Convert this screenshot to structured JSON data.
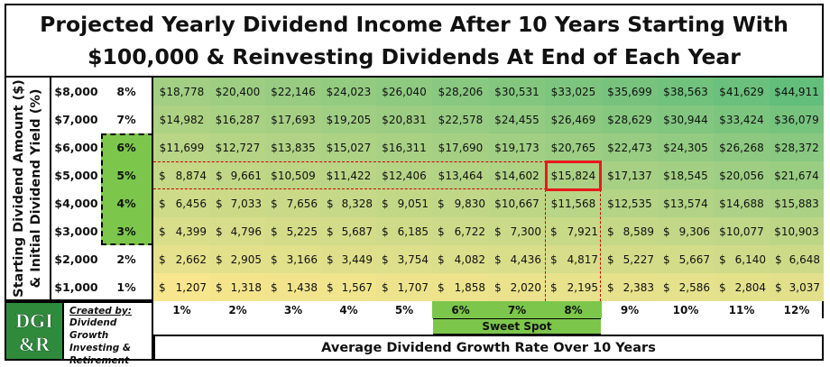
{
  "title": {
    "line1": "Projected Yearly Dividend Income After 10 Years Starting With",
    "line2": "$100,000 & Reinvesting Dividends At End of Each Year"
  },
  "axis": {
    "ylabel_line1": "Starting Dividend Amount ($)",
    "ylabel_line2": "& Initial Dividend Yield (%)",
    "xlabel": "Average Dividend Growth Rate Over 10 Years"
  },
  "sweet_spot_label": "Sweet Spot",
  "credit": {
    "heading": "Created by:",
    "line1": "Dividend Growth",
    "line2": "Investing &",
    "line3": "Retirement"
  },
  "logo": {
    "top": "DGI",
    "bottom": "&R"
  },
  "chart_data": {
    "type": "heatmap",
    "title": "Projected Yearly Dividend Income After 10 Years Starting With $100,000 & Reinvesting Dividends At End of Each Year",
    "xlabel": "Average Dividend Growth Rate Over 10 Years",
    "ylabel": "Starting Dividend Amount ($) & Initial Dividend Yield (%)",
    "x": [
      "1%",
      "2%",
      "3%",
      "4%",
      "5%",
      "6%",
      "7%",
      "8%",
      "9%",
      "10%",
      "11%",
      "12%"
    ],
    "y_amounts": [
      "$8,000",
      "$7,000",
      "$6,000",
      "$5,000",
      "$4,000",
      "$3,000",
      "$2,000",
      "$1,000"
    ],
    "y_yields": [
      "8%",
      "7%",
      "6%",
      "5%",
      "4%",
      "3%",
      "2%",
      "1%"
    ],
    "highlighted_yields": [
      "6%",
      "5%",
      "4%",
      "3%"
    ],
    "highlighted_rates": [
      "6%",
      "7%",
      "8%"
    ],
    "highlighted_cell": {
      "yield": "5%",
      "rate": "8%"
    },
    "colors": {
      "low": "#f8e68e",
      "high": "#63be7b",
      "highlight": "#7cc64c",
      "marker": "#e8191e"
    },
    "values": [
      [
        "18,778",
        "20,400",
        "22,146",
        "24,023",
        "26,040",
        "28,206",
        "30,531",
        "33,025",
        "35,699",
        "38,563",
        "41,629",
        "44,911"
      ],
      [
        "14,982",
        "16,287",
        "17,693",
        "19,205",
        "20,831",
        "22,578",
        "24,455",
        "26,469",
        "28,629",
        "30,944",
        "33,424",
        "36,079"
      ],
      [
        "11,699",
        "12,727",
        "13,835",
        "15,027",
        "16,311",
        "17,690",
        "19,173",
        "20,765",
        "22,473",
        "24,305",
        "26,268",
        "28,372"
      ],
      [
        " 8,874",
        " 9,661",
        "10,509",
        "11,422",
        "12,406",
        "13,464",
        "14,602",
        "15,824",
        "17,137",
        "18,545",
        "20,056",
        "21,674"
      ],
      [
        " 6,456",
        " 7,033",
        " 7,656",
        " 8,328",
        " 9,051",
        " 9,830",
        "10,667",
        "11,568",
        "12,535",
        "13,574",
        "14,688",
        "15,883"
      ],
      [
        " 4,399",
        " 4,796",
        " 5,225",
        " 5,687",
        " 6,185",
        " 6,722",
        " 7,300",
        " 7,921",
        " 8,589",
        " 9,306",
        "10,077",
        "10,903"
      ],
      [
        " 2,662",
        " 2,905",
        " 3,166",
        " 3,449",
        " 3,754",
        " 4,082",
        " 4,436",
        " 4,817",
        " 5,227",
        " 5,667",
        " 6,140",
        " 6,648"
      ],
      [
        " 1,207",
        " 1,318",
        " 1,438",
        " 1,567",
        " 1,707",
        " 1,858",
        " 2,020",
        " 2,195",
        " 2,383",
        " 2,586",
        " 2,804",
        " 3,037"
      ]
    ]
  }
}
